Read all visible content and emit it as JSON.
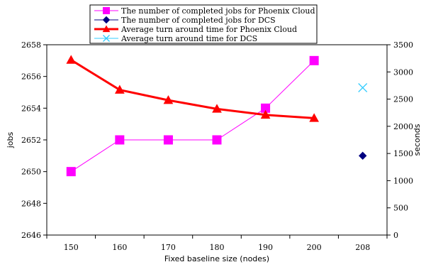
{
  "chart_data": {
    "type": "line",
    "title": "",
    "xlabel": "Fixed baseline size (nodes)",
    "ylabel_left": "jobs",
    "ylabel_right": "seconds",
    "categories": [
      "150",
      "160",
      "170",
      "180",
      "190",
      "200",
      "208"
    ],
    "ylim_left": [
      2646,
      2658
    ],
    "yticks_left": [
      "2646",
      "2648",
      "2650",
      "2652",
      "2654",
      "2656",
      "2658"
    ],
    "ylim_right": [
      0,
      3500
    ],
    "yticks_right": [
      "0",
      "500",
      "1000",
      "1500",
      "2000",
      "2500",
      "3000",
      "3500"
    ],
    "legend_position": "top-center",
    "grid": false,
    "series": [
      {
        "name": "The number of completed jobs for Phoenix Cloud",
        "axis": "left",
        "marker": "square",
        "color": "#ff00ff",
        "x": [
          "150",
          "160",
          "170",
          "180",
          "190",
          "200"
        ],
        "values": [
          2650,
          2652,
          2652,
          2652,
          2654,
          2657
        ]
      },
      {
        "name": "The number of completed jobs for DCS",
        "axis": "left",
        "marker": "diamond",
        "color": "#000080",
        "x": [
          "208"
        ],
        "values": [
          2651
        ]
      },
      {
        "name": "Average turn around time for Phoenix Cloud",
        "axis": "right",
        "marker": "triangle",
        "color": "#ff0000",
        "x": [
          "150",
          "160",
          "170",
          "180",
          "190",
          "200"
        ],
        "values": [
          3220,
          2670,
          2480,
          2320,
          2210,
          2150
        ]
      },
      {
        "name": "Average turn around time for DCS",
        "axis": "right",
        "marker": "x",
        "color": "#33ccff",
        "x": [
          "208"
        ],
        "values": [
          2710
        ]
      }
    ]
  }
}
